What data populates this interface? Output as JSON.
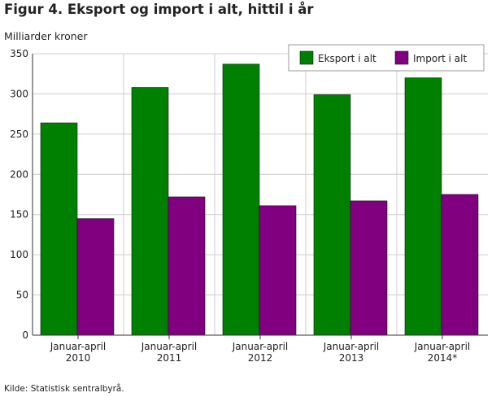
{
  "header": {
    "title": "Figur 4. Eksport og import i alt, hittil i år"
  },
  "footer": {
    "source": "Kilde: Statistisk sentralbyrå."
  },
  "colors": {
    "eksport": "#008000",
    "import": "#800080",
    "grid": "#cccccc",
    "axis": "#333333"
  },
  "chart_data": {
    "type": "bar",
    "title": "Figur 4. Eksport og import i alt, hittil i år",
    "xlabel": "",
    "ylabel": "Milliarder kroner",
    "ylim": [
      0,
      350
    ],
    "yticks": [
      0,
      50,
      100,
      150,
      200,
      250,
      300,
      350
    ],
    "grid": true,
    "legend_position": "top-right",
    "categories": [
      [
        "Januar-april",
        "2010"
      ],
      [
        "Januar-april",
        "2011"
      ],
      [
        "Januar-april",
        "2012"
      ],
      [
        "Januar-april",
        "2013"
      ],
      [
        "Januar-april",
        "2014*"
      ]
    ],
    "series": [
      {
        "name": "Eksport i alt",
        "color": "#008000",
        "values": [
          264,
          308,
          337,
          299,
          320
        ]
      },
      {
        "name": "Import i alt",
        "color": "#800080",
        "values": [
          145,
          172,
          161,
          167,
          175
        ]
      }
    ]
  }
}
